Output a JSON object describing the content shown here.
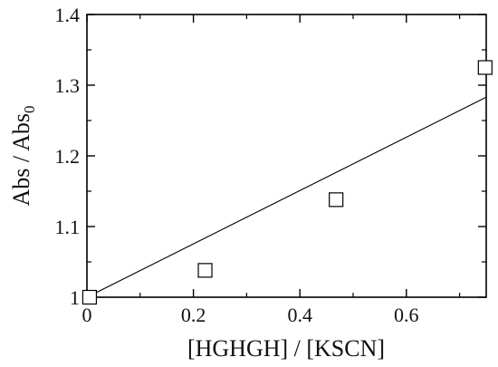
{
  "chart_data": {
    "type": "scatter",
    "xlabel": "[HGHGH] / [KSCN]",
    "ylabel": "Abs / Abs",
    "ylabel_subscript": "0",
    "xlim": [
      0,
      0.75
    ],
    "ylim": [
      1.0,
      1.4
    ],
    "x_ticks": [
      "0",
      "0.2",
      "0.4",
      "0.6"
    ],
    "y_ticks": [
      "1",
      "1.1",
      "1.2",
      "1.3",
      "1.4"
    ],
    "grid": false,
    "series": [
      {
        "marker": "open-square",
        "points": [
          {
            "x": 0.005,
            "y": 1.0
          },
          {
            "x": 0.222,
            "y": 1.038
          },
          {
            "x": 0.468,
            "y": 1.138
          },
          {
            "x": 0.748,
            "y": 1.325
          }
        ]
      }
    ],
    "fit_line": {
      "x": [
        0,
        0.75
      ],
      "y": [
        1.0,
        1.283
      ]
    }
  }
}
